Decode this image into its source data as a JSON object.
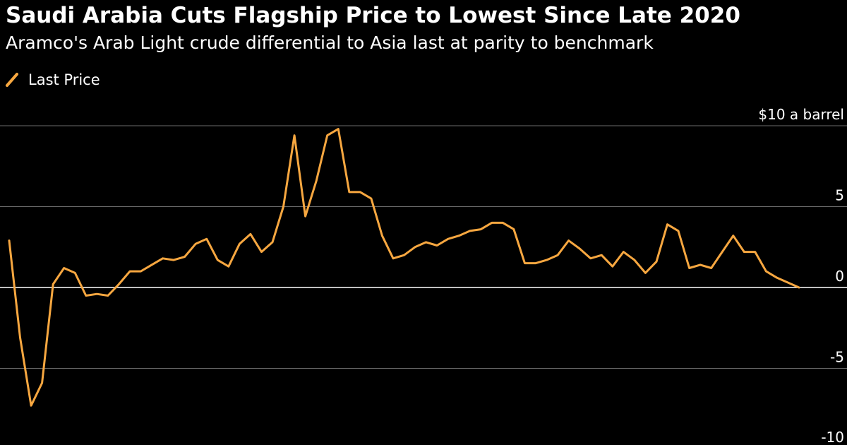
{
  "colors": {
    "background": "#000000",
    "text": "#ffffff",
    "gridline": "#6a6a6a",
    "zero_line": "#ffffff",
    "series": "#f7a740"
  },
  "chart_data": {
    "type": "line",
    "title": "Saudi Arabia Cuts Flagship Price to Lowest Since Late 2020",
    "subtitle": "Aramco's Arab Light crude differential to Asia last at parity to benchmark",
    "xlabel": "",
    "ylabel": "",
    "unit_label": "$10 a barrel",
    "ylim": [
      -10,
      10
    ],
    "yticks": [
      10,
      5,
      0,
      -5,
      -10
    ],
    "ytick_labels": [
      "$10 a barrel",
      "5",
      "0",
      "-5",
      "-10"
    ],
    "grid": true,
    "legend_position": "top-left",
    "series": [
      {
        "name": "Last Price",
        "values": [
          2.9,
          -3.1,
          -7.3,
          -5.9,
          0.2,
          1.2,
          0.9,
          -0.5,
          -0.4,
          -0.5,
          0.2,
          1.0,
          1.0,
          1.4,
          1.8,
          1.7,
          1.9,
          2.7,
          3.0,
          1.7,
          1.3,
          2.7,
          3.3,
          2.2,
          2.8,
          5.0,
          9.4,
          4.4,
          6.6,
          9.4,
          9.8,
          5.9,
          5.9,
          5.5,
          3.2,
          1.8,
          2.0,
          2.5,
          2.8,
          2.6,
          3.0,
          3.2,
          3.5,
          3.6,
          4.0,
          4.0,
          3.6,
          1.5,
          1.5,
          1.7,
          2.0,
          2.9,
          2.4,
          1.8,
          2.0,
          1.3,
          2.2,
          1.7,
          0.9,
          1.6,
          3.9,
          3.5,
          1.2,
          1.4,
          1.2,
          2.2,
          3.2,
          2.2,
          2.2,
          1.0,
          0.6,
          0.3,
          0.0
        ]
      }
    ]
  }
}
